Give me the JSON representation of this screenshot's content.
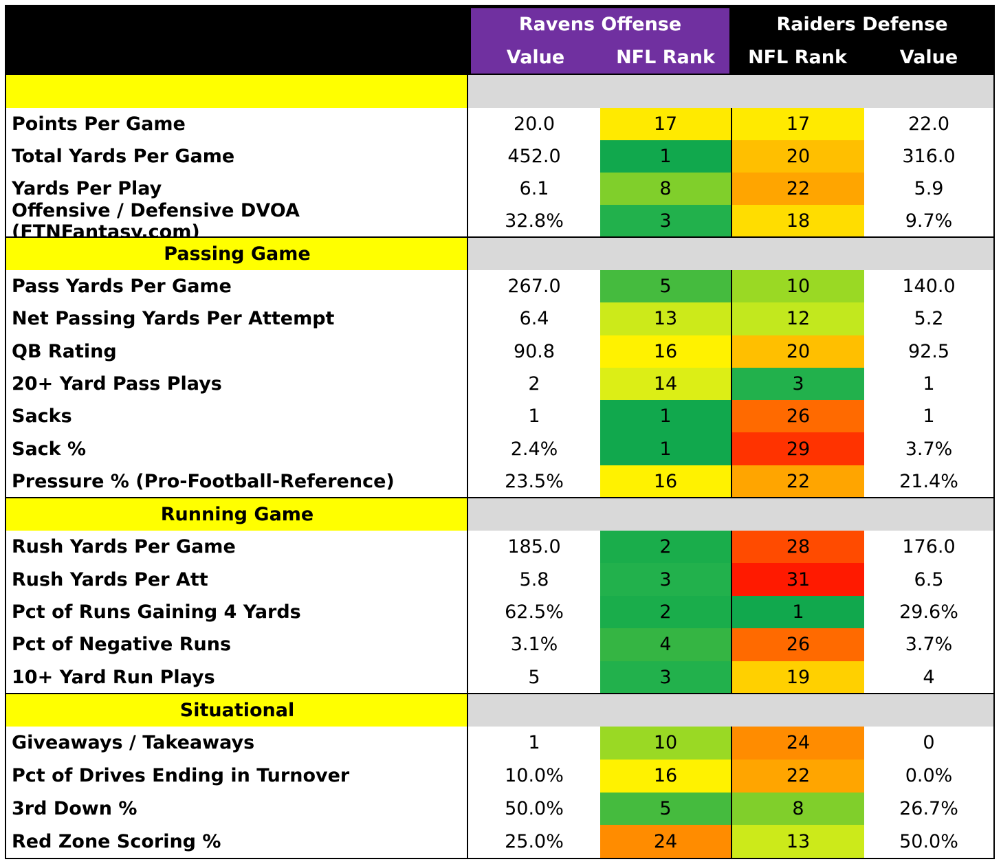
{
  "header": {
    "ravens_title": "Ravens Offense",
    "raiders_title": "Raiders Defense",
    "col_value": "Value",
    "col_rank": "NFL Rank"
  },
  "sections": [
    {
      "title": "",
      "rows": [
        {
          "label": "Points Per Game",
          "off_value": "20.0",
          "off_rank": "17",
          "off_color": "#ffea00",
          "def_rank": "17",
          "def_color": "#ffea00",
          "def_value": "22.0"
        },
        {
          "label": "Total Yards Per Game",
          "off_value": "452.0",
          "off_rank": "1",
          "off_color": "#11a84d",
          "def_rank": "20",
          "def_color": "#ffbf00",
          "def_value": "316.0"
        },
        {
          "label": "Yards Per Play",
          "off_value": "6.1",
          "off_rank": "8",
          "off_color": "#80cf2b",
          "def_rank": "22",
          "def_color": "#ffa500",
          "def_value": "5.9"
        },
        {
          "label": "Offensive / Defensive DVOA (FTNFantasy.com)",
          "off_value": "32.8%",
          "off_rank": "3",
          "off_color": "#22b14c",
          "def_rank": "18",
          "def_color": "#ffdd00",
          "def_value": "9.7%"
        }
      ]
    },
    {
      "title": "Passing Game",
      "rows": [
        {
          "label": "Pass Yards Per Game",
          "off_value": "267.0",
          "off_rank": "5",
          "off_color": "#45bb3e",
          "def_rank": "10",
          "def_color": "#9ad924",
          "def_value": "140.0"
        },
        {
          "label": "Net Passing Yards Per Attempt",
          "off_value": "6.4",
          "off_rank": "13",
          "off_color": "#ccea1a",
          "def_rank": "12",
          "def_color": "#c2e81e",
          "def_value": "5.2"
        },
        {
          "label": "QB Rating",
          "off_value": "90.8",
          "off_rank": "16",
          "off_color": "#fff200",
          "def_rank": "20",
          "def_color": "#ffbf00",
          "def_value": "92.5"
        },
        {
          "label": "20+ Yard Pass Plays",
          "off_value": "2",
          "off_rank": "14",
          "off_color": "#dcee16",
          "def_rank": "3",
          "def_color": "#22b14c",
          "def_value": "1"
        },
        {
          "label": "Sacks",
          "off_value": "1",
          "off_rank": "1",
          "off_color": "#11a84d",
          "def_rank": "26",
          "def_color": "#ff6a00",
          "def_value": "1"
        },
        {
          "label": "Sack %",
          "off_value": "2.4%",
          "off_rank": "1",
          "off_color": "#11a84d",
          "def_rank": "29",
          "def_color": "#ff3300",
          "def_value": "3.7%"
        },
        {
          "label": "Pressure % (Pro-Football-Reference)",
          "off_value": "23.5%",
          "off_rank": "16",
          "off_color": "#fff200",
          "def_rank": "22",
          "def_color": "#ffa500",
          "def_value": "21.4%"
        }
      ]
    },
    {
      "title": "Running Game",
      "rows": [
        {
          "label": "Rush Yards Per Game",
          "off_value": "185.0",
          "off_rank": "2",
          "off_color": "#1aad4b",
          "def_rank": "28",
          "def_color": "#ff4b00",
          "def_value": "176.0"
        },
        {
          "label": "Rush Yards Per Att",
          "off_value": "5.8",
          "off_rank": "3",
          "off_color": "#22b14c",
          "def_rank": "31",
          "def_color": "#ff1a00",
          "def_value": "6.5"
        },
        {
          "label": "Pct of Runs Gaining 4 Yards",
          "off_value": "62.5%",
          "off_rank": "2",
          "off_color": "#1aad4b",
          "def_rank": "1",
          "def_color": "#11a84d",
          "def_value": "29.6%"
        },
        {
          "label": "Pct of Negative Runs",
          "off_value": "3.1%",
          "off_rank": "4",
          "off_color": "#35b543",
          "def_rank": "26",
          "def_color": "#ff6a00",
          "def_value": "3.7%"
        },
        {
          "label": "10+ Yard Run Plays",
          "off_value": "5",
          "off_rank": "3",
          "off_color": "#22b14c",
          "def_rank": "19",
          "def_color": "#ffd000",
          "def_value": "4"
        }
      ]
    },
    {
      "title": "Situational",
      "rows": [
        {
          "label": "Giveaways / Takeaways",
          "off_value": "1",
          "off_rank": "10",
          "off_color": "#9ad924",
          "def_rank": "24",
          "def_color": "#ff8c00",
          "def_value": "0"
        },
        {
          "label": "Pct of Drives Ending in Turnover",
          "off_value": "10.0%",
          "off_rank": "16",
          "off_color": "#fff200",
          "def_rank": "22",
          "def_color": "#ffa500",
          "def_value": "0.0%"
        },
        {
          "label": "3rd Down %",
          "off_value": "50.0%",
          "off_rank": "5",
          "off_color": "#45bb3e",
          "def_rank": "8",
          "def_color": "#80cf2b",
          "def_value": "26.7%"
        },
        {
          "label": "Red Zone Scoring %",
          "off_value": "25.0%",
          "off_rank": "24",
          "off_color": "#ff8c00",
          "def_rank": "13",
          "def_color": "#ccea1a",
          "def_value": "50.0%"
        }
      ]
    }
  ]
}
